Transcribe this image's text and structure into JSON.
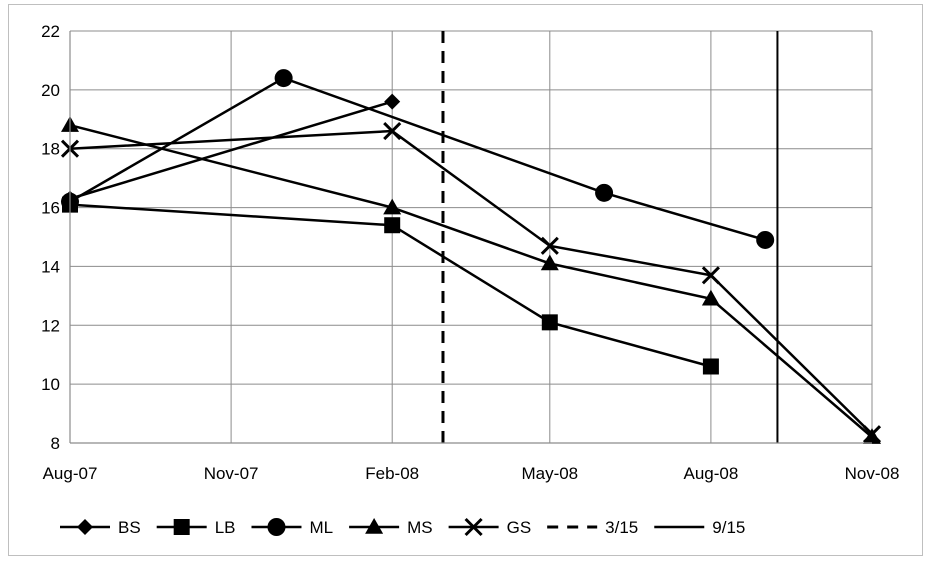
{
  "chart_data": {
    "type": "line",
    "title": "",
    "xlabel": "",
    "ylabel": "",
    "xlim": [
      "2007-08-01",
      "2008-11-01"
    ],
    "ylim": [
      8,
      22
    ],
    "x_ticks": [
      "Aug-07",
      "Nov-07",
      "Feb-08",
      "May-08",
      "Aug-08",
      "Nov-08"
    ],
    "x_tick_dates": [
      "2007-08-01",
      "2007-11-01",
      "2008-02-01",
      "2008-05-01",
      "2008-08-01",
      "2008-11-01"
    ],
    "y_ticks": [
      8,
      10,
      12,
      14,
      16,
      18,
      20,
      22
    ],
    "grid": true,
    "legend_position": "bottom",
    "series": [
      {
        "name": "BS",
        "marker": "diamond",
        "points": [
          {
            "x": "2007-08-01",
            "y": 16.3
          },
          {
            "x": "2008-02-01",
            "y": 19.6
          }
        ]
      },
      {
        "name": "LB",
        "marker": "square",
        "points": [
          {
            "x": "2007-08-01",
            "y": 16.1
          },
          {
            "x": "2008-02-01",
            "y": 15.4
          },
          {
            "x": "2008-05-01",
            "y": 12.1
          },
          {
            "x": "2008-08-01",
            "y": 10.6
          }
        ]
      },
      {
        "name": "ML",
        "marker": "circle",
        "points": [
          {
            "x": "2007-08-01",
            "y": 16.2
          },
          {
            "x": "2007-12-01",
            "y": 20.4
          },
          {
            "x": "2008-06-01",
            "y": 16.5
          },
          {
            "x": "2008-09-01",
            "y": 14.9
          }
        ]
      },
      {
        "name": "MS",
        "marker": "triangle",
        "points": [
          {
            "x": "2007-08-01",
            "y": 18.8
          },
          {
            "x": "2008-02-01",
            "y": 16.0
          },
          {
            "x": "2008-05-01",
            "y": 14.1
          },
          {
            "x": "2008-08-01",
            "y": 12.9
          },
          {
            "x": "2008-11-01",
            "y": 8.2
          }
        ]
      },
      {
        "name": "GS",
        "marker": "x",
        "points": [
          {
            "x": "2007-08-01",
            "y": 18.0
          },
          {
            "x": "2008-02-01",
            "y": 18.6
          },
          {
            "x": "2008-05-01",
            "y": 14.7
          },
          {
            "x": "2008-08-01",
            "y": 13.7
          },
          {
            "x": "2008-11-01",
            "y": 8.3
          }
        ]
      }
    ],
    "reference_lines": [
      {
        "name": "3/15",
        "x": "2008-03-01",
        "style": "dashed"
      },
      {
        "name": "9/15",
        "x": "2008-09-08",
        "style": "solid"
      }
    ],
    "line_color": "#000000",
    "grid_color": "#8c8c8c"
  }
}
